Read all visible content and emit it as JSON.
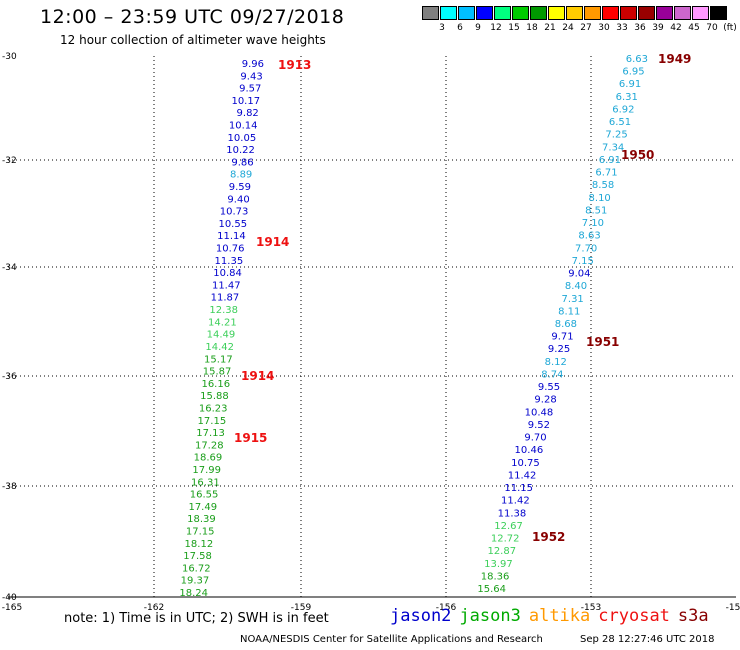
{
  "title": "12:00 – 23:59 UTC 09/27/2018",
  "subtitle": "12 hour collection of altimeter wave heights",
  "legend": {
    "colors": [
      "#808080",
      "#00ffff",
      "#00bfff",
      "#0000ff",
      "#00ff80",
      "#00cc00",
      "#009900",
      "#ffff00",
      "#ffcc00",
      "#ff9900",
      "#ff0000",
      "#cc0000",
      "#990000",
      "#990099",
      "#cc66cc",
      "#ff99ff",
      "#000000"
    ],
    "labels": [
      "3",
      "6",
      "9",
      "12",
      "15",
      "18",
      "21",
      "24",
      "27",
      "30",
      "33",
      "36",
      "39",
      "42",
      "45",
      "70",
      "(ft)"
    ]
  },
  "map": {
    "lon_ticks": [
      "-165",
      "-162",
      "-159",
      "-156",
      "-153",
      "-15"
    ],
    "lat_ticks": [
      "-30",
      "-32",
      "-34",
      "-36",
      "-38",
      "-40"
    ]
  },
  "tracks": [
    {
      "id": "left",
      "points": [
        {
          "v": "9.96",
          "c": "#0000cc"
        },
        {
          "v": "9.43",
          "c": "#0000cc"
        },
        {
          "v": "9.57",
          "c": "#0000cc"
        },
        {
          "v": "10.17",
          "c": "#0000cc"
        },
        {
          "v": "9.82",
          "c": "#0000cc"
        },
        {
          "v": "10.14",
          "c": "#0000cc"
        },
        {
          "v": "10.05",
          "c": "#0000cc"
        },
        {
          "v": "10.22",
          "c": "#0000cc"
        },
        {
          "v": "9.86",
          "c": "#0000cc"
        },
        {
          "v": "8.89",
          "c": "#1ea7d6"
        },
        {
          "v": "9.59",
          "c": "#0000cc"
        },
        {
          "v": "9.40",
          "c": "#0000cc"
        },
        {
          "v": "10.73",
          "c": "#0000cc"
        },
        {
          "v": "10.55",
          "c": "#0000cc"
        },
        {
          "v": "11.14",
          "c": "#0000cc"
        },
        {
          "v": "10.76",
          "c": "#0000cc"
        },
        {
          "v": "11.35",
          "c": "#0000cc"
        },
        {
          "v": "10.84",
          "c": "#0000cc"
        },
        {
          "v": "11.47",
          "c": "#0000cc"
        },
        {
          "v": "11.87",
          "c": "#0000cc"
        },
        {
          "v": "12.38",
          "c": "#3ccf5a"
        },
        {
          "v": "14.21",
          "c": "#3ccf5a"
        },
        {
          "v": "14.49",
          "c": "#3ccf5a"
        },
        {
          "v": "14.42",
          "c": "#3ccf5a"
        },
        {
          "v": "15.17",
          "c": "#1a9e1a"
        },
        {
          "v": "15.87",
          "c": "#1a9e1a"
        },
        {
          "v": "16.16",
          "c": "#1a9e1a"
        },
        {
          "v": "15.88",
          "c": "#1a9e1a"
        },
        {
          "v": "16.23",
          "c": "#1a9e1a"
        },
        {
          "v": "17.15",
          "c": "#1a9e1a"
        },
        {
          "v": "17.13",
          "c": "#1a9e1a"
        },
        {
          "v": "17.28",
          "c": "#1a9e1a"
        },
        {
          "v": "18.69",
          "c": "#1a9e1a"
        },
        {
          "v": "17.99",
          "c": "#1a9e1a"
        },
        {
          "v": "16.31",
          "c": "#1a9e1a"
        },
        {
          "v": "16.55",
          "c": "#1a9e1a"
        },
        {
          "v": "17.49",
          "c": "#1a9e1a"
        },
        {
          "v": "18.39",
          "c": "#1a9e1a"
        },
        {
          "v": "17.15",
          "c": "#1a9e1a"
        },
        {
          "v": "18.12",
          "c": "#1a9e1a"
        },
        {
          "v": "17.58",
          "c": "#1a9e1a"
        },
        {
          "v": "16.72",
          "c": "#1a9e1a"
        },
        {
          "v": "19.37",
          "c": "#1a9e1a"
        },
        {
          "v": "18.24",
          "c": "#1a9e1a"
        }
      ]
    },
    {
      "id": "right",
      "points": [
        {
          "v": "6.63",
          "c": "#1ea7d6"
        },
        {
          "v": "6.95",
          "c": "#1ea7d6"
        },
        {
          "v": "6.91",
          "c": "#1ea7d6"
        },
        {
          "v": "6.31",
          "c": "#1ea7d6"
        },
        {
          "v": "6.92",
          "c": "#1ea7d6"
        },
        {
          "v": "6.51",
          "c": "#1ea7d6"
        },
        {
          "v": "7.25",
          "c": "#1ea7d6"
        },
        {
          "v": "7.34",
          "c": "#1ea7d6"
        },
        {
          "v": "6.91",
          "c": "#1ea7d6"
        },
        {
          "v": "6.71",
          "c": "#1ea7d6"
        },
        {
          "v": "8.58",
          "c": "#1ea7d6"
        },
        {
          "v": "8.10",
          "c": "#1ea7d6"
        },
        {
          "v": "8.51",
          "c": "#1ea7d6"
        },
        {
          "v": "7.10",
          "c": "#1ea7d6"
        },
        {
          "v": "8.63",
          "c": "#1ea7d6"
        },
        {
          "v": "7.70",
          "c": "#1ea7d6"
        },
        {
          "v": "7.15",
          "c": "#1ea7d6"
        },
        {
          "v": "9.04",
          "c": "#0000cc"
        },
        {
          "v": "8.40",
          "c": "#1ea7d6"
        },
        {
          "v": "7.31",
          "c": "#1ea7d6"
        },
        {
          "v": "8.11",
          "c": "#1ea7d6"
        },
        {
          "v": "8.68",
          "c": "#1ea7d6"
        },
        {
          "v": "9.71",
          "c": "#0000cc"
        },
        {
          "v": "9.25",
          "c": "#0000cc"
        },
        {
          "v": "8.12",
          "c": "#1ea7d6"
        },
        {
          "v": "8.74",
          "c": "#1ea7d6"
        },
        {
          "v": "9.55",
          "c": "#0000cc"
        },
        {
          "v": "9.28",
          "c": "#0000cc"
        },
        {
          "v": "10.48",
          "c": "#0000cc"
        },
        {
          "v": "9.52",
          "c": "#0000cc"
        },
        {
          "v": "9.70",
          "c": "#0000cc"
        },
        {
          "v": "10.46",
          "c": "#0000cc"
        },
        {
          "v": "10.75",
          "c": "#0000cc"
        },
        {
          "v": "11.42",
          "c": "#0000cc"
        },
        {
          "v": "11.15",
          "c": "#0000cc"
        },
        {
          "v": "11.42",
          "c": "#0000cc"
        },
        {
          "v": "11.38",
          "c": "#0000cc"
        },
        {
          "v": "12.67",
          "c": "#3ccf5a"
        },
        {
          "v": "12.72",
          "c": "#3ccf5a"
        },
        {
          "v": "12.87",
          "c": "#3ccf5a"
        },
        {
          "v": "13.97",
          "c": "#3ccf5a"
        },
        {
          "v": "18.36",
          "c": "#1a9e1a"
        },
        {
          "v": "15.64",
          "c": "#1a9e1a"
        }
      ]
    }
  ],
  "time_labels": [
    {
      "text": "1913",
      "color": "#ee1111"
    },
    {
      "text": "1914",
      "color": "#ee1111"
    },
    {
      "text": "1914",
      "color": "#ee1111"
    },
    {
      "text": "1915",
      "color": "#ee1111"
    },
    {
      "text": "1949",
      "color": "#880000"
    },
    {
      "text": "1950",
      "color": "#880000"
    },
    {
      "text": "1951",
      "color": "#880000"
    },
    {
      "text": "1952",
      "color": "#880000"
    }
  ],
  "note": "note: 1) Time is in UTC; 2) SWH is in feet",
  "satellites": [
    {
      "name": "jason2",
      "color": "#0000cc"
    },
    {
      "name": "jason3",
      "color": "#00aa00"
    },
    {
      "name": "altika",
      "color": "#ff9900"
    },
    {
      "name": "cryosat",
      "color": "#ee1111"
    },
    {
      "name": "s3a",
      "color": "#880000"
    }
  ],
  "credit": "NOAA/NESDIS Center for Satellite Applications and Research",
  "timestamp": "Sep 28 12:27:46 UTC 2018"
}
